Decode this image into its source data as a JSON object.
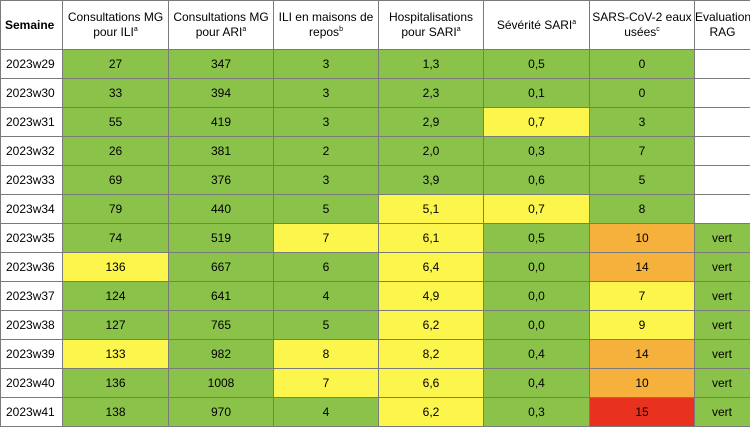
{
  "table": {
    "headers": [
      {
        "text": "Semaine",
        "sup": ""
      },
      {
        "text": "Consultations MG pour ILI",
        "sup": "a"
      },
      {
        "text": "Consultations MG pour ARI",
        "sup": "a"
      },
      {
        "text": "ILI en maisons de repos",
        "sup": "b"
      },
      {
        "text": "Hospitalisations pour SARI",
        "sup": "a"
      },
      {
        "text": "Sévérité SARI",
        "sup": "a"
      },
      {
        "text": "SARS-CoV-2 eaux usées",
        "sup": "c"
      },
      {
        "text": "Evaluation RAG",
        "sup": ""
      }
    ],
    "colors": {
      "green": "#8bc34a",
      "yellow": "#fbf54c",
      "orange": "#f6b13d",
      "red": "#e8321f",
      "white": "#ffffff"
    },
    "rows": [
      {
        "week": "2023w29",
        "cells": [
          {
            "v": "27",
            "c": "green"
          },
          {
            "v": "347",
            "c": "green"
          },
          {
            "v": "3",
            "c": "green"
          },
          {
            "v": "1,3",
            "c": "green"
          },
          {
            "v": "0,5",
            "c": "green"
          },
          {
            "v": "0",
            "c": "green"
          },
          {
            "v": "",
            "c": "white"
          }
        ]
      },
      {
        "week": "2023w30",
        "cells": [
          {
            "v": "33",
            "c": "green"
          },
          {
            "v": "394",
            "c": "green"
          },
          {
            "v": "3",
            "c": "green"
          },
          {
            "v": "2,3",
            "c": "green"
          },
          {
            "v": "0,1",
            "c": "green"
          },
          {
            "v": "0",
            "c": "green"
          },
          {
            "v": "",
            "c": "white"
          }
        ]
      },
      {
        "week": "2023w31",
        "cells": [
          {
            "v": "55",
            "c": "green"
          },
          {
            "v": "419",
            "c": "green"
          },
          {
            "v": "3",
            "c": "green"
          },
          {
            "v": "2,9",
            "c": "green"
          },
          {
            "v": "0,7",
            "c": "yellow"
          },
          {
            "v": "3",
            "c": "green"
          },
          {
            "v": "",
            "c": "white"
          }
        ]
      },
      {
        "week": "2023w32",
        "cells": [
          {
            "v": "26",
            "c": "green"
          },
          {
            "v": "381",
            "c": "green"
          },
          {
            "v": "2",
            "c": "green"
          },
          {
            "v": "2,0",
            "c": "green"
          },
          {
            "v": "0,3",
            "c": "green"
          },
          {
            "v": "7",
            "c": "green"
          },
          {
            "v": "",
            "c": "white"
          }
        ]
      },
      {
        "week": "2023w33",
        "cells": [
          {
            "v": "69",
            "c": "green"
          },
          {
            "v": "376",
            "c": "green"
          },
          {
            "v": "3",
            "c": "green"
          },
          {
            "v": "3,9",
            "c": "green"
          },
          {
            "v": "0,6",
            "c": "green"
          },
          {
            "v": "5",
            "c": "green"
          },
          {
            "v": "",
            "c": "white"
          }
        ]
      },
      {
        "week": "2023w34",
        "cells": [
          {
            "v": "79",
            "c": "green"
          },
          {
            "v": "440",
            "c": "green"
          },
          {
            "v": "5",
            "c": "green"
          },
          {
            "v": "5,1",
            "c": "yellow"
          },
          {
            "v": "0,7",
            "c": "yellow"
          },
          {
            "v": "8",
            "c": "green"
          },
          {
            "v": "",
            "c": "white"
          }
        ]
      },
      {
        "week": "2023w35",
        "cells": [
          {
            "v": "74",
            "c": "green"
          },
          {
            "v": "519",
            "c": "green"
          },
          {
            "v": "7",
            "c": "yellow"
          },
          {
            "v": "6,1",
            "c": "yellow"
          },
          {
            "v": "0,5",
            "c": "green"
          },
          {
            "v": "10",
            "c": "orange"
          },
          {
            "v": "vert",
            "c": "green"
          }
        ]
      },
      {
        "week": "2023w36",
        "cells": [
          {
            "v": "136",
            "c": "yellow"
          },
          {
            "v": "667",
            "c": "green"
          },
          {
            "v": "6",
            "c": "green"
          },
          {
            "v": "6,4",
            "c": "yellow"
          },
          {
            "v": "0,0",
            "c": "green"
          },
          {
            "v": "14",
            "c": "orange"
          },
          {
            "v": "vert",
            "c": "green"
          }
        ]
      },
      {
        "week": "2023w37",
        "cells": [
          {
            "v": "124",
            "c": "green"
          },
          {
            "v": "641",
            "c": "green"
          },
          {
            "v": "4",
            "c": "green"
          },
          {
            "v": "4,9",
            "c": "yellow"
          },
          {
            "v": "0,0",
            "c": "green"
          },
          {
            "v": "7",
            "c": "yellow"
          },
          {
            "v": "vert",
            "c": "green"
          }
        ]
      },
      {
        "week": "2023w38",
        "cells": [
          {
            "v": "127",
            "c": "green"
          },
          {
            "v": "765",
            "c": "green"
          },
          {
            "v": "5",
            "c": "green"
          },
          {
            "v": "6,2",
            "c": "yellow"
          },
          {
            "v": "0,0",
            "c": "green"
          },
          {
            "v": "9",
            "c": "yellow"
          },
          {
            "v": "vert",
            "c": "green"
          }
        ]
      },
      {
        "week": "2023w39",
        "cells": [
          {
            "v": "133",
            "c": "yellow"
          },
          {
            "v": "982",
            "c": "green"
          },
          {
            "v": "8",
            "c": "yellow"
          },
          {
            "v": "8,2",
            "c": "yellow"
          },
          {
            "v": "0,4",
            "c": "green"
          },
          {
            "v": "14",
            "c": "orange"
          },
          {
            "v": "vert",
            "c": "green"
          }
        ]
      },
      {
        "week": "2023w40",
        "cells": [
          {
            "v": "136",
            "c": "green"
          },
          {
            "v": "1008",
            "c": "green"
          },
          {
            "v": "7",
            "c": "yellow"
          },
          {
            "v": "6,6",
            "c": "yellow"
          },
          {
            "v": "0,4",
            "c": "green"
          },
          {
            "v": "10",
            "c": "orange"
          },
          {
            "v": "vert",
            "c": "green"
          }
        ]
      },
      {
        "week": "2023w41",
        "cells": [
          {
            "v": "138",
            "c": "green"
          },
          {
            "v": "970",
            "c": "green"
          },
          {
            "v": "4",
            "c": "green"
          },
          {
            "v": "6,2",
            "c": "yellow"
          },
          {
            "v": "0,3",
            "c": "green"
          },
          {
            "v": "15",
            "c": "red"
          },
          {
            "v": "vert",
            "c": "green"
          }
        ]
      }
    ]
  }
}
